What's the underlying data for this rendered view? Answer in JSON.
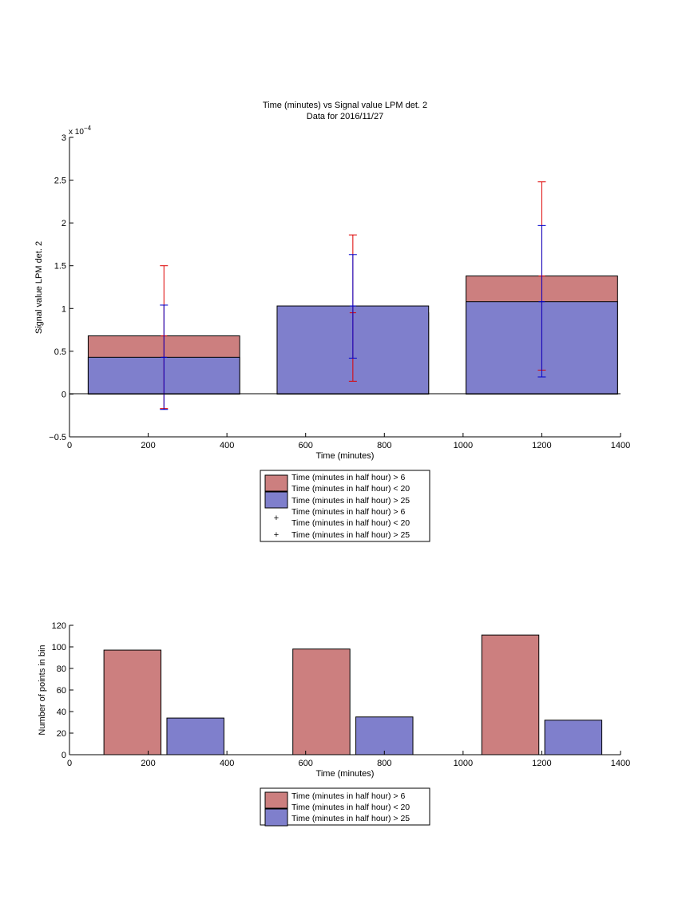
{
  "chart_data": [
    {
      "type": "bar",
      "title": "Time (minutes) vs Signal value LPM det. 2",
      "subtitle": "Data for 2016/11/27",
      "xlabel": "Time (minutes)",
      "ylabel": "Signal value LPM det. 2",
      "y_exponent": "x 10",
      "y_exponent_power": "−4",
      "xlim": [
        0,
        1400
      ],
      "ylim": [
        -0.5,
        3
      ],
      "x_ticks": [
        "0",
        "200",
        "400",
        "600",
        "800",
        "1000",
        "1200",
        "1400"
      ],
      "y_ticks": [
        "−0.5",
        "0",
        "0.5",
        "1",
        "1.5",
        "2",
        "2.5",
        "3"
      ],
      "bar_width": 385,
      "grid": false,
      "legend_position": "below",
      "series": [
        {
          "name_line1": "Time (minutes in half hour) > 6",
          "name_line2": "Time (minutes in half hour) < 20",
          "color": "#cc7f7f",
          "x": [
            240,
            720,
            1200
          ],
          "values": [
            0.68,
            0.95,
            1.38
          ],
          "err_low": [
            -0.17,
            0.15,
            0.28
          ],
          "err_high": [
            1.5,
            1.86,
            2.48
          ],
          "marker": "+",
          "marker_color": "#dd0000"
        },
        {
          "name": "Time (minutes in half hour) > 25",
          "color": "#7f7fcc",
          "x": [
            240,
            720,
            1200
          ],
          "values": [
            0.43,
            1.03,
            1.08
          ],
          "err_low": [
            -0.18,
            0.42,
            0.2
          ],
          "err_high": [
            1.04,
            1.63,
            1.97
          ],
          "marker": "+",
          "marker_color": "#0000cc"
        }
      ]
    },
    {
      "type": "bar",
      "xlabel": "Time (minutes)",
      "ylabel": "Number of points in bin",
      "xlim": [
        0,
        1400
      ],
      "ylim": [
        0,
        120
      ],
      "x_ticks": [
        "0",
        "200",
        "400",
        "600",
        "800",
        "1000",
        "1200",
        "1400"
      ],
      "y_ticks": [
        "0",
        "20",
        "40",
        "60",
        "80",
        "100",
        "120"
      ],
      "bar_width": 145,
      "grid": false,
      "legend_position": "below",
      "series": [
        {
          "name_line1": "Time (minutes in half hour) > 6",
          "name_line2": "Time (minutes in half hour) < 20",
          "color": "#cc7f7f",
          "x": [
            160,
            640,
            1120
          ],
          "values": [
            97,
            98,
            111
          ]
        },
        {
          "name": "Time (minutes in half hour) > 25",
          "color": "#7f7fcc",
          "x": [
            320,
            800,
            1280
          ],
          "values": [
            34,
            35,
            32
          ]
        }
      ]
    }
  ]
}
